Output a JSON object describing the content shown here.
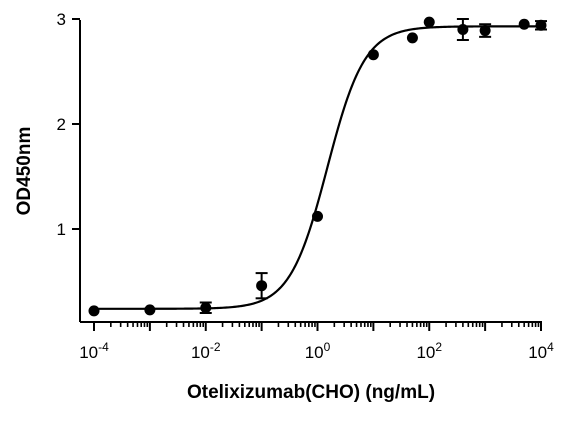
{
  "chart_data": {
    "type": "scatter",
    "title": "",
    "xlabel": "Otelixizumab(CHO) (ng/mL)",
    "ylabel": "OD450nm",
    "x_scale": "log10",
    "xlim": [
      0.0001,
      10000
    ],
    "ylim": [
      0.1,
      3.0
    ],
    "x_ticks": [
      {
        "value": 0.0001,
        "base": "10",
        "exp": "-4"
      },
      {
        "value": 0.01,
        "base": "10",
        "exp": "-2"
      },
      {
        "value": 1,
        "base": "10",
        "exp": "0"
      },
      {
        "value": 100,
        "base": "10",
        "exp": "2"
      },
      {
        "value": 10000,
        "base": "10",
        "exp": "4"
      }
    ],
    "y_ticks": [
      {
        "value": 1,
        "label": "1"
      },
      {
        "value": 2,
        "label": "2"
      },
      {
        "value": 3,
        "label": "3"
      }
    ],
    "grid": false,
    "legend": "none",
    "series": [
      {
        "marker": "filled-circle",
        "color": "#000000",
        "points": [
          {
            "x": 0.0001,
            "y": 0.22,
            "err": 0
          },
          {
            "x": 0.001,
            "y": 0.23,
            "err": 0
          },
          {
            "x": 0.01,
            "y": 0.25,
            "err": 0.05
          },
          {
            "x": 0.1,
            "y": 0.46,
            "err": 0.12
          },
          {
            "x": 1,
            "y": 1.12,
            "err": 0
          },
          {
            "x": 10,
            "y": 2.66,
            "err": 0
          },
          {
            "x": 50,
            "y": 2.82,
            "err": 0
          },
          {
            "x": 100,
            "y": 2.97,
            "err": 0
          },
          {
            "x": 400,
            "y": 2.9,
            "err": 0.1
          },
          {
            "x": 1000,
            "y": 2.89,
            "err": 0.06
          },
          {
            "x": 5000,
            "y": 2.95,
            "err": 0
          },
          {
            "x": 10000,
            "y": 2.94,
            "err": 0.04
          }
        ]
      }
    ],
    "fit": {
      "model": "4PL",
      "bottom": 0.24,
      "top": 2.93,
      "ec50": 1.5,
      "hill": 1.3,
      "color": "#000000"
    }
  }
}
